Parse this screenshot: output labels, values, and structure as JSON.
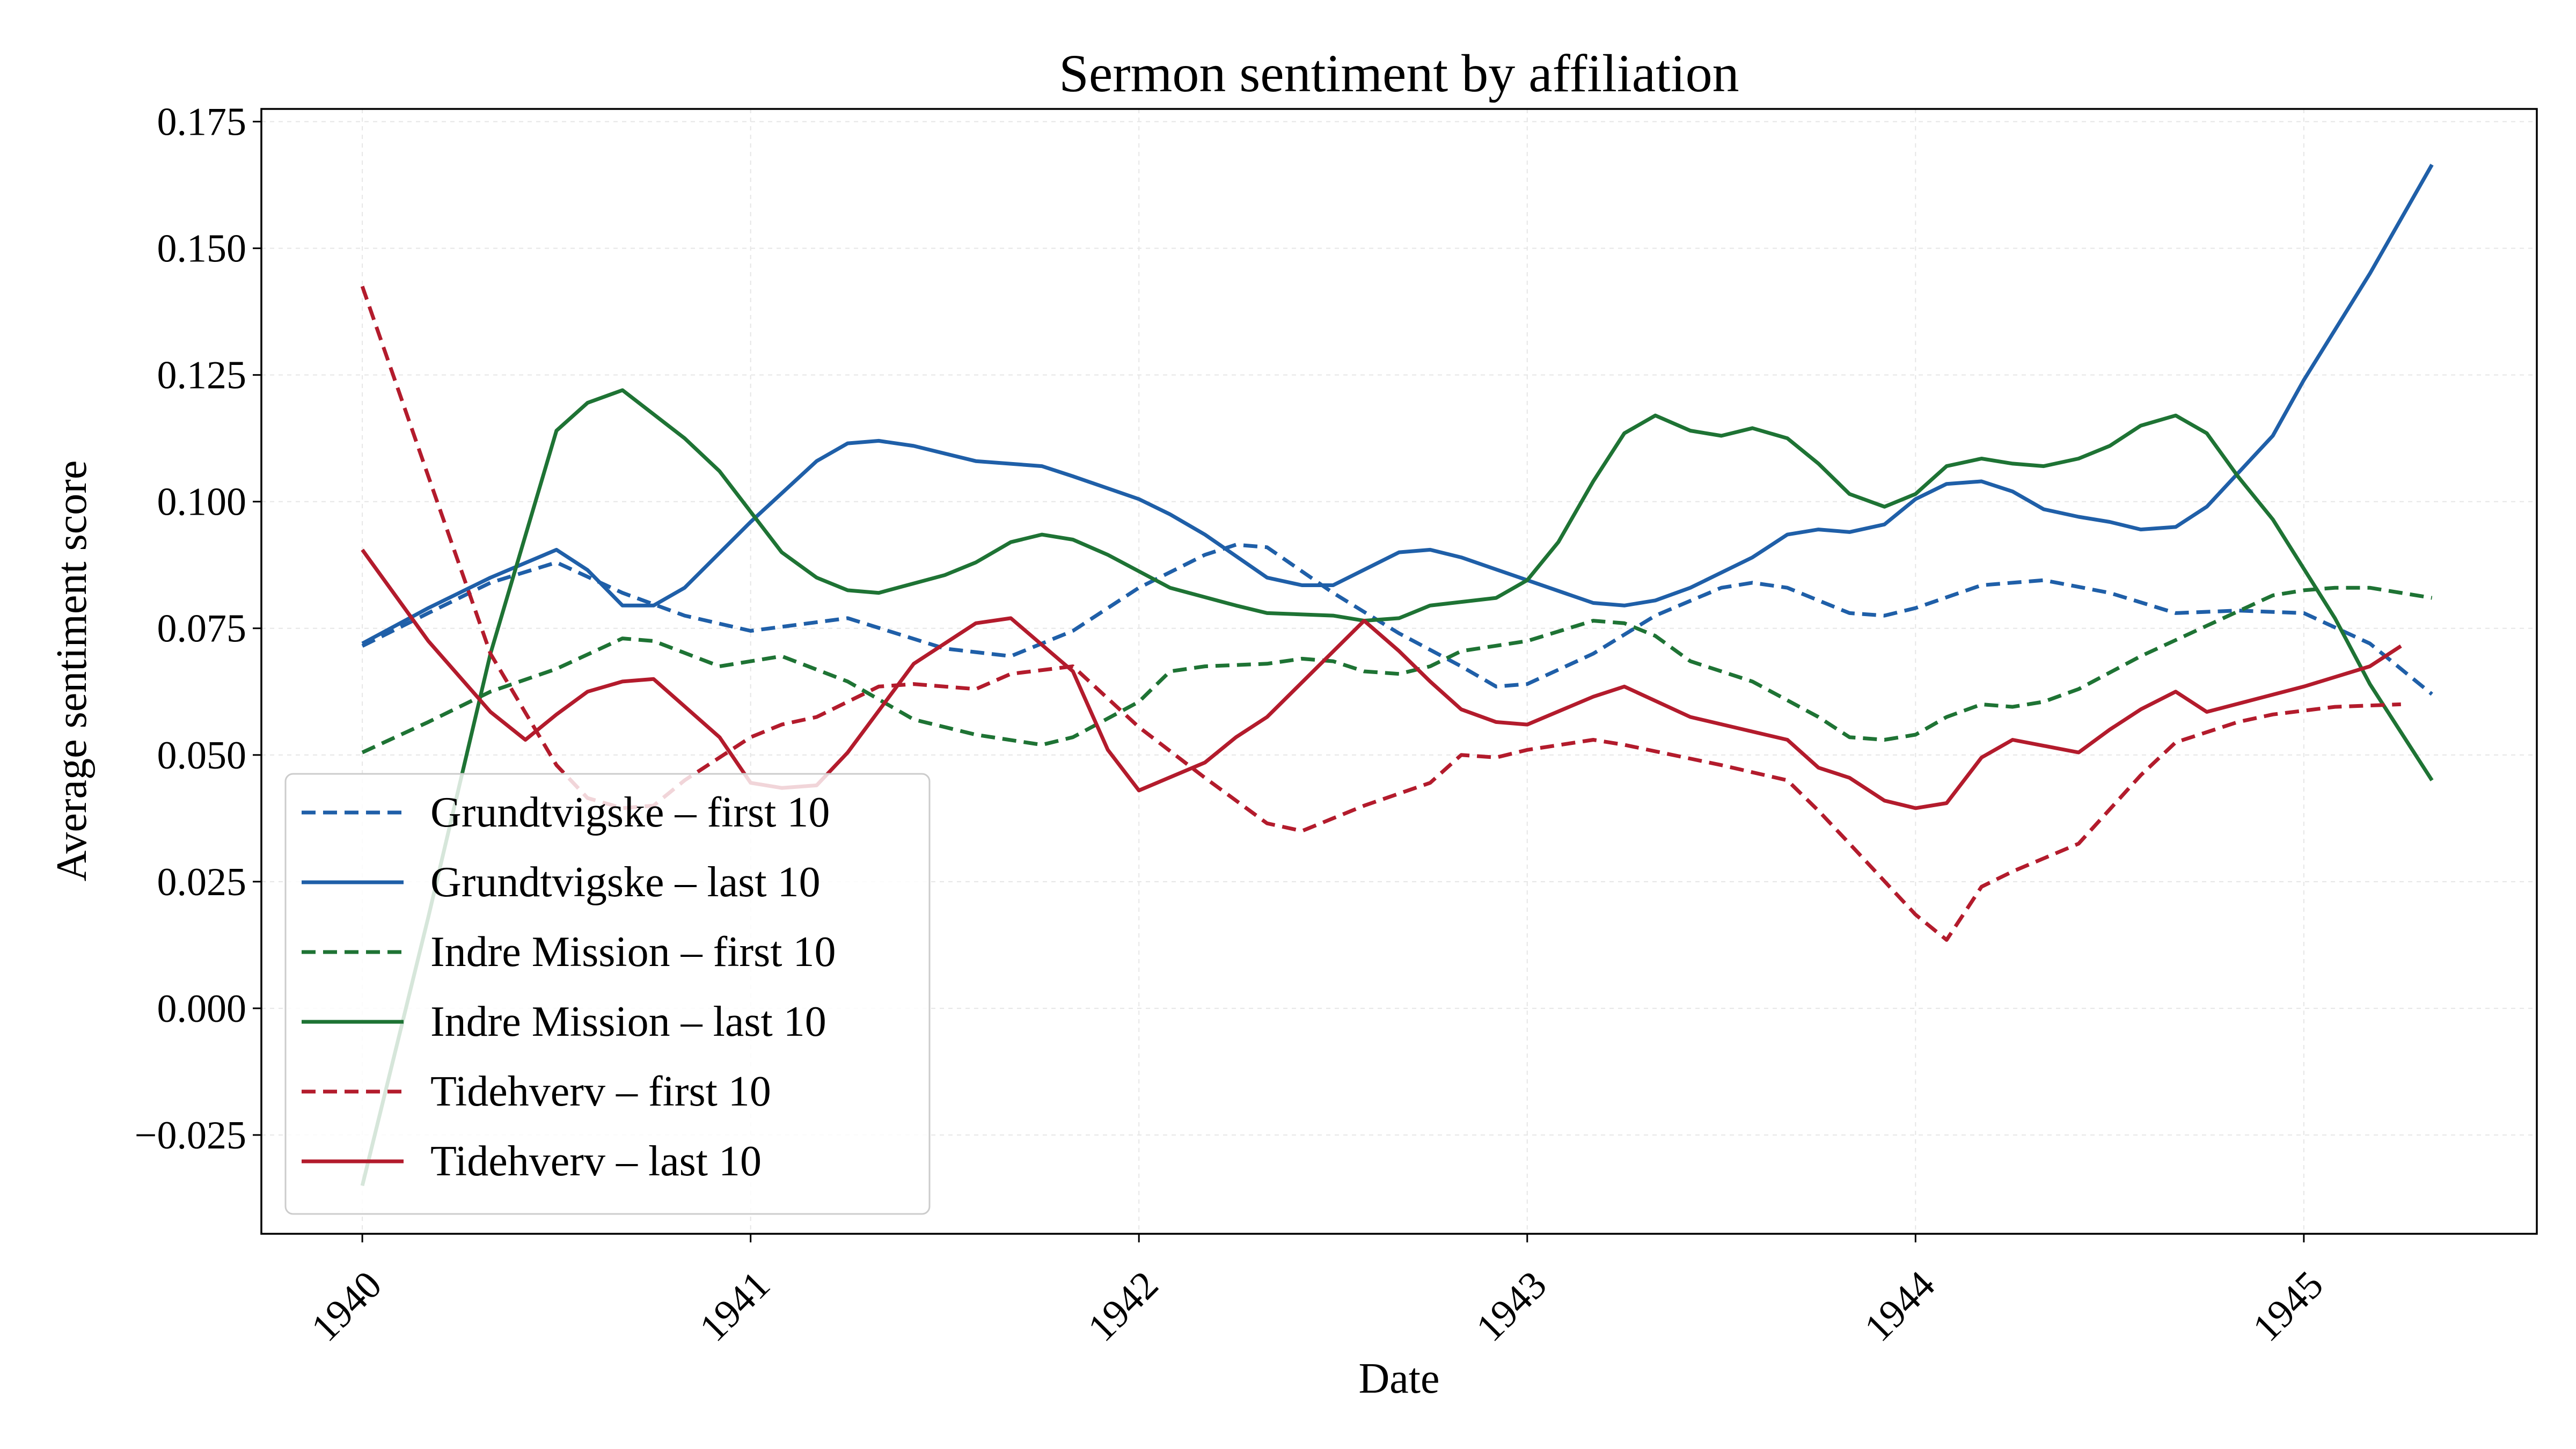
{
  "chart_data": {
    "type": "line",
    "title": "Sermon sentiment by affiliation",
    "xlabel": "Date",
    "ylabel": "Average sentiment score",
    "xlim": [
      1939.74,
      1945.6
    ],
    "ylim": [
      -0.0445,
      0.1775
    ],
    "x_ticks": [
      1940,
      1941,
      1942,
      1943,
      1944,
      1945
    ],
    "x_tick_labels": [
      "1940",
      "1941",
      "1942",
      "1943",
      "1944",
      "1945"
    ],
    "y_ticks": [
      -0.025,
      0.0,
      0.025,
      0.05,
      0.075,
      0.1,
      0.125,
      0.15,
      0.175
    ],
    "y_tick_labels": [
      "−0.025",
      "0.000",
      "0.025",
      "0.050",
      "0.075",
      "0.100",
      "0.125",
      "0.150",
      "0.175"
    ],
    "grid": true,
    "legend_position": "lower-left",
    "series": [
      {
        "name": "Grundtvigske – first 10",
        "color": "#1f5fa8",
        "dash": "dashed",
        "points": [
          [
            1940.0,
            0.0715
          ],
          [
            1940.17,
            0.078
          ],
          [
            1940.33,
            0.084
          ],
          [
            1940.5,
            0.088
          ],
          [
            1940.67,
            0.082
          ],
          [
            1940.83,
            0.0775
          ],
          [
            1941.0,
            0.0745
          ],
          [
            1941.25,
            0.077
          ],
          [
            1941.5,
            0.071
          ],
          [
            1941.67,
            0.0695
          ],
          [
            1941.83,
            0.0745
          ],
          [
            1942.0,
            0.083
          ],
          [
            1942.17,
            0.0895
          ],
          [
            1942.25,
            0.0915
          ],
          [
            1942.33,
            0.091
          ],
          [
            1942.5,
            0.082
          ],
          [
            1942.67,
            0.074
          ],
          [
            1942.83,
            0.0675
          ],
          [
            1942.92,
            0.0635
          ],
          [
            1943.0,
            0.064
          ],
          [
            1943.17,
            0.07
          ],
          [
            1943.33,
            0.0775
          ],
          [
            1943.5,
            0.083
          ],
          [
            1943.58,
            0.084
          ],
          [
            1943.67,
            0.083
          ],
          [
            1943.83,
            0.078
          ],
          [
            1943.92,
            0.0775
          ],
          [
            1944.0,
            0.079
          ],
          [
            1944.17,
            0.0835
          ],
          [
            1944.33,
            0.0845
          ],
          [
            1944.5,
            0.082
          ],
          [
            1944.67,
            0.078
          ],
          [
            1944.83,
            0.0785
          ],
          [
            1945.0,
            0.078
          ],
          [
            1945.17,
            0.072
          ],
          [
            1945.33,
            0.062
          ]
        ]
      },
      {
        "name": "Grundtvigske – last 10",
        "color": "#1f5fa8",
        "dash": "solid",
        "points": [
          [
            1940.0,
            0.072
          ],
          [
            1940.17,
            0.079
          ],
          [
            1940.33,
            0.085
          ],
          [
            1940.5,
            0.0905
          ],
          [
            1940.58,
            0.0865
          ],
          [
            1940.67,
            0.0795
          ],
          [
            1940.75,
            0.0795
          ],
          [
            1940.83,
            0.083
          ],
          [
            1941.0,
            0.096
          ],
          [
            1941.17,
            0.108
          ],
          [
            1941.25,
            0.1115
          ],
          [
            1941.33,
            0.112
          ],
          [
            1941.42,
            0.111
          ],
          [
            1941.58,
            0.108
          ],
          [
            1941.75,
            0.107
          ],
          [
            1941.83,
            0.105
          ],
          [
            1942.0,
            0.1005
          ],
          [
            1942.08,
            0.0975
          ],
          [
            1942.17,
            0.0935
          ],
          [
            1942.33,
            0.085
          ],
          [
            1942.42,
            0.0835
          ],
          [
            1942.5,
            0.0835
          ],
          [
            1942.67,
            0.09
          ],
          [
            1942.75,
            0.0905
          ],
          [
            1942.83,
            0.089
          ],
          [
            1943.0,
            0.0845
          ],
          [
            1943.17,
            0.08
          ],
          [
            1943.25,
            0.0795
          ],
          [
            1943.33,
            0.0805
          ],
          [
            1943.42,
            0.083
          ],
          [
            1943.58,
            0.089
          ],
          [
            1943.67,
            0.0935
          ],
          [
            1943.75,
            0.0945
          ],
          [
            1943.83,
            0.094
          ],
          [
            1943.92,
            0.0955
          ],
          [
            1944.0,
            0.1005
          ],
          [
            1944.08,
            0.1035
          ],
          [
            1944.17,
            0.104
          ],
          [
            1944.25,
            0.102
          ],
          [
            1944.33,
            0.0985
          ],
          [
            1944.42,
            0.097
          ],
          [
            1944.5,
            0.096
          ],
          [
            1944.58,
            0.0945
          ],
          [
            1944.67,
            0.095
          ],
          [
            1944.75,
            0.099
          ],
          [
            1944.92,
            0.113
          ],
          [
            1945.0,
            0.124
          ],
          [
            1945.17,
            0.145
          ],
          [
            1945.33,
            0.1665
          ]
        ]
      },
      {
        "name": "Indre Mission – first 10",
        "color": "#1e7334",
        "dash": "dashed",
        "points": [
          [
            1940.0,
            0.0505
          ],
          [
            1940.17,
            0.0565
          ],
          [
            1940.33,
            0.0625
          ],
          [
            1940.5,
            0.067
          ],
          [
            1940.67,
            0.073
          ],
          [
            1940.75,
            0.0725
          ],
          [
            1940.92,
            0.0675
          ],
          [
            1941.08,
            0.0695
          ],
          [
            1941.25,
            0.0645
          ],
          [
            1941.42,
            0.057
          ],
          [
            1941.58,
            0.054
          ],
          [
            1941.75,
            0.052
          ],
          [
            1941.83,
            0.0535
          ],
          [
            1942.0,
            0.0605
          ],
          [
            1942.08,
            0.0665
          ],
          [
            1942.17,
            0.0675
          ],
          [
            1942.33,
            0.068
          ],
          [
            1942.42,
            0.069
          ],
          [
            1942.5,
            0.0685
          ],
          [
            1942.58,
            0.0665
          ],
          [
            1942.67,
            0.066
          ],
          [
            1942.75,
            0.0675
          ],
          [
            1942.83,
            0.0705
          ],
          [
            1943.0,
            0.0725
          ],
          [
            1943.17,
            0.0765
          ],
          [
            1943.25,
            0.076
          ],
          [
            1943.33,
            0.0735
          ],
          [
            1943.42,
            0.0685
          ],
          [
            1943.58,
            0.0645
          ],
          [
            1943.75,
            0.0575
          ],
          [
            1943.83,
            0.0535
          ],
          [
            1943.92,
            0.053
          ],
          [
            1944.0,
            0.054
          ],
          [
            1944.08,
            0.0575
          ],
          [
            1944.17,
            0.06
          ],
          [
            1944.25,
            0.0595
          ],
          [
            1944.33,
            0.0605
          ],
          [
            1944.42,
            0.063
          ],
          [
            1944.58,
            0.0695
          ],
          [
            1944.75,
            0.0755
          ],
          [
            1944.92,
            0.0815
          ],
          [
            1945.0,
            0.0825
          ],
          [
            1945.08,
            0.083
          ],
          [
            1945.17,
            0.083
          ],
          [
            1945.33,
            0.081
          ]
        ]
      },
      {
        "name": "Indre Mission – last 10",
        "color": "#1e7334",
        "dash": "solid",
        "points": [
          [
            1940.0,
            -0.035
          ],
          [
            1940.17,
            0.018
          ],
          [
            1940.33,
            0.07
          ],
          [
            1940.5,
            0.114
          ],
          [
            1940.58,
            0.1195
          ],
          [
            1940.67,
            0.122
          ],
          [
            1940.83,
            0.1125
          ],
          [
            1940.92,
            0.106
          ],
          [
            1941.0,
            0.098
          ],
          [
            1941.08,
            0.09
          ],
          [
            1941.17,
            0.085
          ],
          [
            1941.25,
            0.0825
          ],
          [
            1941.33,
            0.082
          ],
          [
            1941.5,
            0.0855
          ],
          [
            1941.58,
            0.088
          ],
          [
            1941.67,
            0.092
          ],
          [
            1941.75,
            0.0935
          ],
          [
            1941.83,
            0.0925
          ],
          [
            1941.92,
            0.0895
          ],
          [
            1942.08,
            0.083
          ],
          [
            1942.25,
            0.0795
          ],
          [
            1942.33,
            0.078
          ],
          [
            1942.5,
            0.0775
          ],
          [
            1942.58,
            0.0765
          ],
          [
            1942.67,
            0.077
          ],
          [
            1942.75,
            0.0795
          ],
          [
            1942.92,
            0.081
          ],
          [
            1943.0,
            0.0845
          ],
          [
            1943.08,
            0.092
          ],
          [
            1943.17,
            0.104
          ],
          [
            1943.25,
            0.1135
          ],
          [
            1943.33,
            0.117
          ],
          [
            1943.42,
            0.114
          ],
          [
            1943.5,
            0.113
          ],
          [
            1943.58,
            0.1145
          ],
          [
            1943.67,
            0.1125
          ],
          [
            1943.75,
            0.1075
          ],
          [
            1943.83,
            0.1015
          ],
          [
            1943.92,
            0.099
          ],
          [
            1944.0,
            0.1015
          ],
          [
            1944.08,
            0.107
          ],
          [
            1944.17,
            0.1085
          ],
          [
            1944.25,
            0.1075
          ],
          [
            1944.33,
            0.107
          ],
          [
            1944.42,
            0.1085
          ],
          [
            1944.5,
            0.111
          ],
          [
            1944.58,
            0.115
          ],
          [
            1944.67,
            0.117
          ],
          [
            1944.75,
            0.1135
          ],
          [
            1944.83,
            0.105
          ],
          [
            1944.92,
            0.0965
          ],
          [
            1945.08,
            0.077
          ],
          [
            1945.17,
            0.064
          ],
          [
            1945.33,
            0.045
          ]
        ]
      },
      {
        "name": "Tidehverv – first 10",
        "color": "#b31b2c",
        "dash": "dashed",
        "points": [
          [
            1940.0,
            0.1425
          ],
          [
            1940.17,
            0.105
          ],
          [
            1940.33,
            0.07
          ],
          [
            1940.5,
            0.048
          ],
          [
            1940.58,
            0.0415
          ],
          [
            1940.67,
            0.0395
          ],
          [
            1940.75,
            0.04
          ],
          [
            1940.83,
            0.045
          ],
          [
            1941.0,
            0.0535
          ],
          [
            1941.08,
            0.056
          ],
          [
            1941.17,
            0.0575
          ],
          [
            1941.33,
            0.0635
          ],
          [
            1941.42,
            0.064
          ],
          [
            1941.58,
            0.063
          ],
          [
            1941.67,
            0.066
          ],
          [
            1941.83,
            0.0675
          ],
          [
            1942.0,
            0.0555
          ],
          [
            1942.17,
            0.0455
          ],
          [
            1942.33,
            0.0365
          ],
          [
            1942.42,
            0.035
          ],
          [
            1942.5,
            0.0375
          ],
          [
            1942.58,
            0.04
          ],
          [
            1942.75,
            0.0445
          ],
          [
            1942.83,
            0.05
          ],
          [
            1942.92,
            0.0495
          ],
          [
            1943.0,
            0.051
          ],
          [
            1943.17,
            0.053
          ],
          [
            1943.25,
            0.052
          ],
          [
            1943.5,
            0.048
          ],
          [
            1943.67,
            0.045
          ],
          [
            1943.75,
            0.039
          ],
          [
            1943.83,
            0.0325
          ],
          [
            1944.0,
            0.0185
          ],
          [
            1944.08,
            0.0135
          ],
          [
            1944.17,
            0.024
          ],
          [
            1944.25,
            0.027
          ],
          [
            1944.42,
            0.0325
          ],
          [
            1944.58,
            0.046
          ],
          [
            1944.67,
            0.0525
          ],
          [
            1944.83,
            0.0565
          ],
          [
            1944.92,
            0.058
          ],
          [
            1945.08,
            0.0595
          ],
          [
            1945.25,
            0.06
          ]
        ]
      },
      {
        "name": "Tidehverv – last 10",
        "color": "#b31b2c",
        "dash": "solid",
        "points": [
          [
            1940.0,
            0.0905
          ],
          [
            1940.17,
            0.0725
          ],
          [
            1940.33,
            0.0585
          ],
          [
            1940.42,
            0.053
          ],
          [
            1940.5,
            0.058
          ],
          [
            1940.58,
            0.0625
          ],
          [
            1940.67,
            0.0645
          ],
          [
            1940.75,
            0.065
          ],
          [
            1940.92,
            0.0535
          ],
          [
            1941.0,
            0.0445
          ],
          [
            1941.08,
            0.0435
          ],
          [
            1941.17,
            0.044
          ],
          [
            1941.25,
            0.0505
          ],
          [
            1941.42,
            0.068
          ],
          [
            1941.58,
            0.076
          ],
          [
            1941.67,
            0.077
          ],
          [
            1941.83,
            0.0665
          ],
          [
            1941.92,
            0.051
          ],
          [
            1942.0,
            0.043
          ],
          [
            1942.17,
            0.0485
          ],
          [
            1942.25,
            0.0535
          ],
          [
            1942.33,
            0.0575
          ],
          [
            1942.58,
            0.0765
          ],
          [
            1942.67,
            0.0705
          ],
          [
            1942.75,
            0.0645
          ],
          [
            1942.83,
            0.059
          ],
          [
            1942.92,
            0.0565
          ],
          [
            1943.0,
            0.056
          ],
          [
            1943.17,
            0.0615
          ],
          [
            1943.25,
            0.0635
          ],
          [
            1943.42,
            0.0575
          ],
          [
            1943.67,
            0.053
          ],
          [
            1943.75,
            0.0475
          ],
          [
            1943.83,
            0.0455
          ],
          [
            1943.92,
            0.041
          ],
          [
            1944.0,
            0.0395
          ],
          [
            1944.08,
            0.0405
          ],
          [
            1944.17,
            0.0495
          ],
          [
            1944.25,
            0.053
          ],
          [
            1944.42,
            0.0505
          ],
          [
            1944.5,
            0.055
          ],
          [
            1944.58,
            0.059
          ],
          [
            1944.67,
            0.0625
          ],
          [
            1944.75,
            0.0585
          ],
          [
            1945.0,
            0.0635
          ],
          [
            1945.17,
            0.0675
          ],
          [
            1945.25,
            0.0715
          ]
        ]
      }
    ]
  }
}
